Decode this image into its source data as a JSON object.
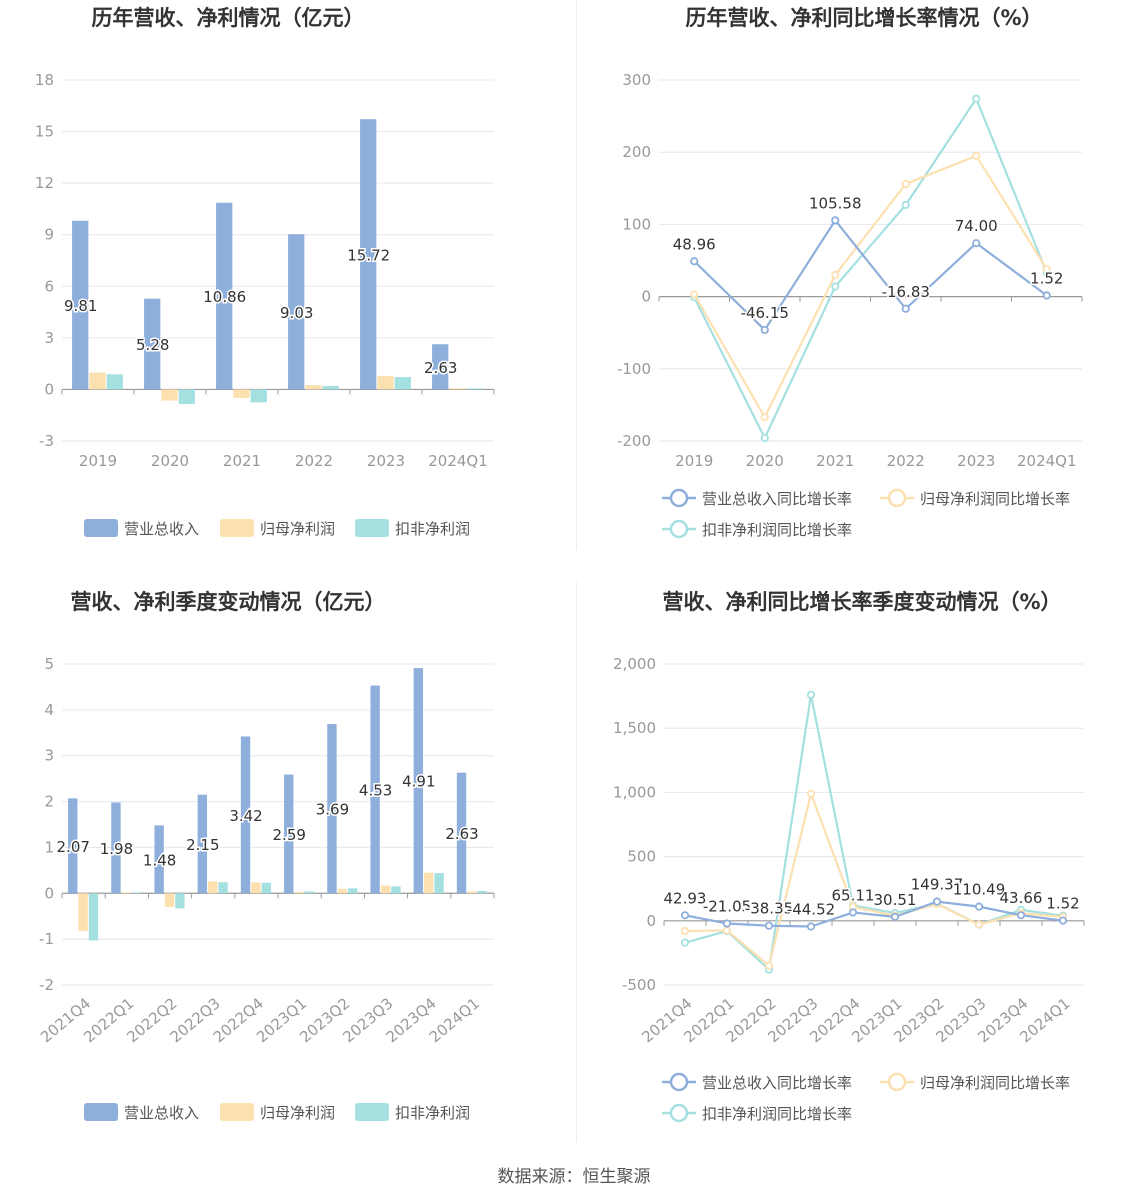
{
  "footer": {
    "source": "数据来源：恒生聚源"
  },
  "colors": {
    "revenue": "#8eaedb",
    "net_profit": "#fde0b0",
    "deducted_profit": "#a5e0e0"
  },
  "chart_data": [
    {
      "type": "bar",
      "title": "历年营收、净利情况（亿元）",
      "categories": [
        "2019",
        "2020",
        "2021",
        "2022",
        "2023",
        "2024Q1"
      ],
      "ylim": [
        -3,
        18
      ],
      "yticks": [
        -3,
        0,
        3,
        6,
        9,
        12,
        15,
        18
      ],
      "series": [
        {
          "name": "营业总收入",
          "values": [
            9.81,
            5.28,
            10.86,
            9.03,
            15.72,
            2.63
          ],
          "show_labels": true
        },
        {
          "name": "归母净利润",
          "values": [
            0.98,
            -0.65,
            -0.5,
            0.25,
            0.78,
            0.07
          ],
          "show_labels": false
        },
        {
          "name": "扣非净利润",
          "values": [
            0.88,
            -0.85,
            -0.75,
            0.2,
            0.72,
            0.06
          ],
          "show_labels": false
        }
      ],
      "legend": "bottom"
    },
    {
      "type": "line",
      "title": "历年营收、净利同比增长率情况（%）",
      "categories": [
        "2019",
        "2020",
        "2021",
        "2022",
        "2023",
        "2024Q1"
      ],
      "ylim": [
        -200,
        300
      ],
      "yticks": [
        -200,
        -100,
        0,
        100,
        200,
        300
      ],
      "series": [
        {
          "name": "营业总收入同比增长率",
          "values": [
            48.96,
            -46.15,
            105.58,
            -16.83,
            74.0,
            1.52
          ],
          "show_labels": true
        },
        {
          "name": "归母净利润同比增长率",
          "values": [
            3,
            -167,
            30,
            156,
            195,
            38
          ],
          "show_labels": false
        },
        {
          "name": "扣非净利润同比增长率",
          "values": [
            -1,
            -196,
            14,
            127,
            274,
            33
          ],
          "show_labels": false
        }
      ],
      "legend": "bottom"
    },
    {
      "type": "bar",
      "title": "营收、净利季度变动情况（亿元）",
      "categories": [
        "2021Q4",
        "2022Q1",
        "2022Q2",
        "2022Q3",
        "2022Q4",
        "2023Q1",
        "2023Q2",
        "2023Q3",
        "2023Q4",
        "2024Q1"
      ],
      "ylim": [
        -2,
        5
      ],
      "yticks": [
        -2,
        -1,
        0,
        1,
        2,
        3,
        4,
        5
      ],
      "series": [
        {
          "name": "营业总收入",
          "values": [
            2.07,
            1.98,
            1.48,
            2.15,
            3.42,
            2.59,
            3.69,
            4.53,
            4.91,
            2.63
          ],
          "show_labels": true
        },
        {
          "name": "归母净利润",
          "values": [
            -0.82,
            0.02,
            -0.3,
            0.26,
            0.24,
            0.03,
            0.1,
            0.17,
            0.45,
            0.04
          ],
          "show_labels": false
        },
        {
          "name": "扣非净利润",
          "values": [
            -1.03,
            0.02,
            -0.33,
            0.24,
            0.23,
            0.04,
            0.11,
            0.15,
            0.44,
            0.05
          ],
          "show_labels": false
        }
      ],
      "legend": "bottom"
    },
    {
      "type": "line",
      "title": "营收、净利同比增长率季度变动情况（%）",
      "categories": [
        "2021Q4",
        "2022Q1",
        "2022Q2",
        "2022Q3",
        "2022Q4",
        "2023Q1",
        "2023Q2",
        "2023Q3",
        "2023Q4",
        "2024Q1"
      ],
      "ylim": [
        -500,
        2000
      ],
      "yticks": [
        -500,
        0,
        500,
        1000,
        1500,
        2000
      ],
      "ytick_labels": [
        "-500",
        "0",
        "500",
        "1,000",
        "1,500",
        "2,000"
      ],
      "series": [
        {
          "name": "营业总收入同比增长率",
          "values": [
            42.93,
            -21.05,
            -38.35,
            -44.52,
            65.11,
            30.51,
            149.37,
            110.49,
            43.66,
            1.52
          ],
          "labels": [
            "42.93",
            "-21.05",
            "-38.35",
            "-44.52",
            "65.11",
            "30.51",
            "149.37",
            "110.49",
            "43.66",
            "1.52"
          ],
          "show_labels": true
        },
        {
          "name": "归母净利润同比增长率",
          "values": [
            -80,
            -75,
            -350,
            990,
            110,
            40,
            130,
            -30,
            60,
            30
          ],
          "show_labels": false
        },
        {
          "name": "扣非净利润同比增长率",
          "values": [
            -170,
            -80,
            -380,
            1760,
            120,
            60,
            135,
            -30,
            85,
            40
          ],
          "show_labels": false
        }
      ],
      "legend": "bottom"
    }
  ]
}
